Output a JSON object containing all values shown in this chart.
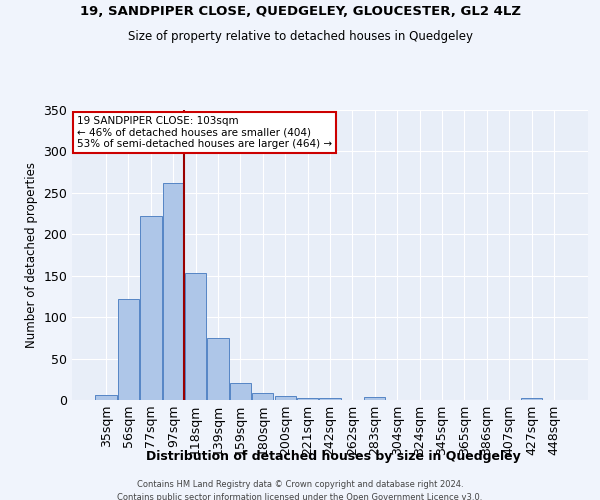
{
  "title": "19, SANDPIPER CLOSE, QUEDGELEY, GLOUCESTER, GL2 4LZ",
  "subtitle": "Size of property relative to detached houses in Quedgeley",
  "xlabel": "Distribution of detached houses by size in Quedgeley",
  "ylabel": "Number of detached properties",
  "bin_labels": [
    "35sqm",
    "56sqm",
    "77sqm",
    "97sqm",
    "118sqm",
    "139sqm",
    "159sqm",
    "180sqm",
    "200sqm",
    "221sqm",
    "242sqm",
    "262sqm",
    "283sqm",
    "304sqm",
    "324sqm",
    "345sqm",
    "365sqm",
    "386sqm",
    "407sqm",
    "427sqm",
    "448sqm"
  ],
  "bar_heights": [
    6,
    122,
    222,
    262,
    153,
    75,
    20,
    9,
    5,
    3,
    2,
    0,
    4,
    0,
    0,
    0,
    0,
    0,
    0,
    3,
    0
  ],
  "bar_color": "#aec6e8",
  "bar_edge_color": "#5585c5",
  "bg_color": "#e8eef8",
  "grid_color": "#ffffff",
  "red_line_x": 3.5,
  "annotation_text": "19 SANDPIPER CLOSE: 103sqm\n← 46% of detached houses are smaller (404)\n53% of semi-detached houses are larger (464) →",
  "annotation_box_color": "#ffffff",
  "annotation_box_edge": "#cc0000",
  "ylim": [
    0,
    350
  ],
  "yticks": [
    0,
    50,
    100,
    150,
    200,
    250,
    300,
    350
  ],
  "footer1": "Contains HM Land Registry data © Crown copyright and database right 2024.",
  "footer2": "Contains public sector information licensed under the Open Government Licence v3.0."
}
